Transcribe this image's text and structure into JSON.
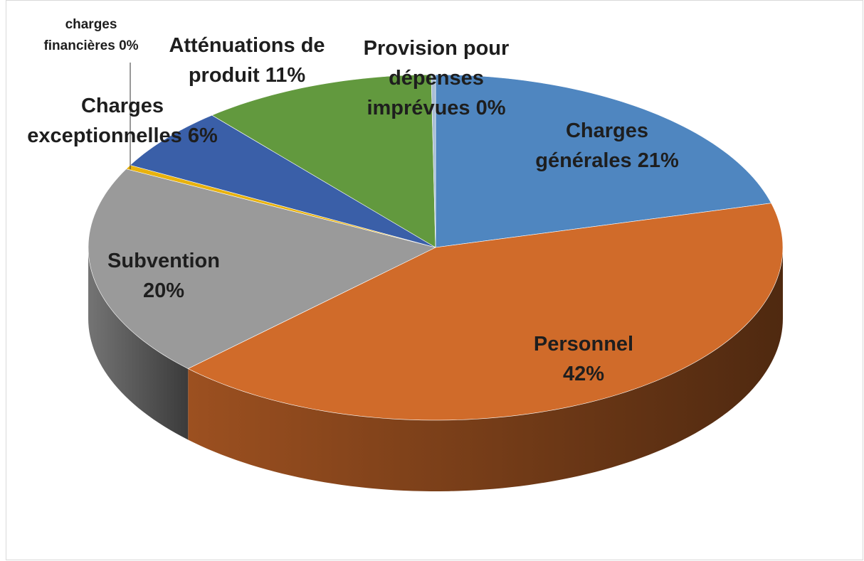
{
  "chart_data": {
    "type": "pie3d",
    "categories": [
      "Charges générales",
      "Personnel",
      "Subvention",
      "charges financières",
      "Charges exceptionnelles",
      "Atténuations de produit",
      "Provision pour dépenses imprévues"
    ],
    "values": [
      21,
      42,
      20,
      0.4,
      6,
      11,
      0.2
    ],
    "value_labels": [
      "21%",
      "42%",
      "20%",
      "0%",
      "6%",
      "11%",
      "0%"
    ],
    "colors": [
      "#4f86c0",
      "#d06b2a",
      "#9a9a9a",
      "#e8b20e",
      "#3a5fa8",
      "#62993e",
      "#a9bdd4"
    ]
  }
}
